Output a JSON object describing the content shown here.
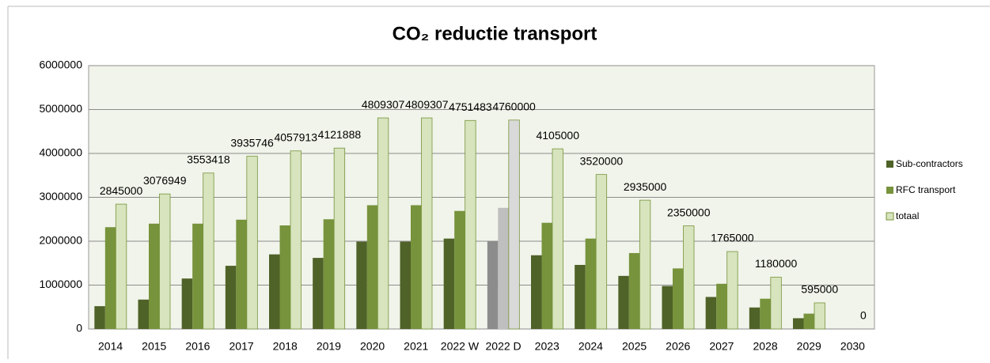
{
  "chart_data": {
    "type": "bar",
    "title": "CO₂ reductie transport",
    "categories": [
      "2014",
      "2015",
      "2016",
      "2017",
      "2018",
      "2019",
      "2020",
      "2021",
      "2022 W",
      "2022 D",
      "2023",
      "2024",
      "2025",
      "2026",
      "2027",
      "2028",
      "2029",
      "2030"
    ],
    "series": [
      {
        "name": "Sub-contractors",
        "color": "#4f6228",
        "highlight_color": "#8c8c8c",
        "values": [
          520000,
          670000,
          1150000,
          1440000,
          1700000,
          1620000,
          1990000,
          1990000,
          2060000,
          2000000,
          1680000,
          1460000,
          1210000,
          980000,
          730000,
          490000,
          245000,
          0
        ]
      },
      {
        "name": "RFC transport",
        "color": "#77933c",
        "highlight_color": "#bfbfbf",
        "values": [
          2320000,
          2400000,
          2400000,
          2490000,
          2360000,
          2500000,
          2820000,
          2820000,
          2690000,
          2760000,
          2420000,
          2060000,
          1730000,
          1380000,
          1030000,
          690000,
          350000,
          0
        ]
      },
      {
        "name": "totaal",
        "color": "#d7e4bd",
        "highlight_color": "#d9d9d9",
        "show_labels": true,
        "values": [
          2845000,
          3076949,
          3553418,
          3935746,
          4057913,
          4121888,
          4809307,
          4809307,
          4751483,
          4760000,
          4105000,
          3520000,
          2935000,
          2350000,
          1765000,
          1180000,
          595000,
          0
        ]
      }
    ],
    "highlight_category": "2022 D",
    "ylim": [
      0,
      6000000
    ],
    "yticks": [
      0,
      1000000,
      2000000,
      3000000,
      4000000,
      5000000,
      6000000
    ],
    "grid": true,
    "legend": "right"
  }
}
